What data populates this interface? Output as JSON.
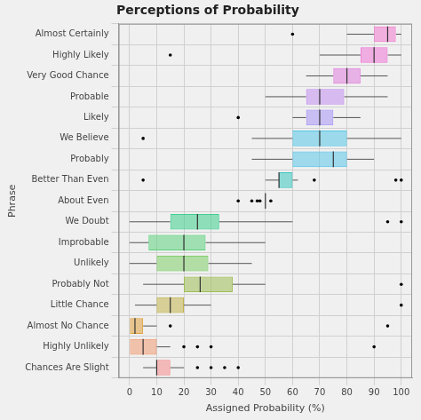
{
  "chart_data": {
    "type": "boxplot",
    "orientation": "horizontal",
    "title": "Perceptions of Probability",
    "x_label": "Assigned Probability (%)",
    "y_label": "Phrase",
    "xlim": [
      -4,
      104
    ],
    "xticks": [
      0,
      10,
      20,
      30,
      40,
      50,
      60,
      70,
      80,
      90,
      100
    ],
    "grid": true,
    "legend": false,
    "categories": [
      "Almost Certainly",
      "Highly Likely",
      "Very Good Chance",
      "Probable",
      "Likely",
      "We Believe",
      "Probably",
      "Better Than Even",
      "About Even",
      "We Doubt",
      "Improbable",
      "Unlikely",
      "Probably Not",
      "Little Chance",
      "Almost No Chance",
      "Highly Unlikely",
      "Chances Are Slight"
    ],
    "values": [
      {
        "min": 80,
        "q1": 90,
        "median": 95,
        "q3": 98,
        "max": 100,
        "outliers": [
          60
        ]
      },
      {
        "min": 70,
        "q1": 85,
        "median": 90,
        "q3": 95,
        "max": 100,
        "outliers": [
          15
        ]
      },
      {
        "min": 65,
        "q1": 75,
        "median": 80,
        "q3": 85,
        "max": 95,
        "outliers": []
      },
      {
        "min": 50,
        "q1": 65,
        "median": 70,
        "q3": 79,
        "max": 95,
        "outliers": []
      },
      {
        "min": 60,
        "q1": 65,
        "median": 70,
        "q3": 75,
        "max": 85,
        "outliers": [
          40
        ]
      },
      {
        "min": 45,
        "q1": 60,
        "median": 70,
        "q3": 80,
        "max": 100,
        "outliers": [
          5
        ]
      },
      {
        "min": 45,
        "q1": 60,
        "median": 75,
        "q3": 80,
        "max": 90,
        "outliers": []
      },
      {
        "min": 50,
        "q1": 55,
        "median": 55,
        "q3": 60,
        "max": 62,
        "outliers": [
          5,
          68,
          98,
          100
        ]
      },
      {
        "min": 50,
        "q1": 50,
        "median": 50,
        "q3": 50,
        "max": 50,
        "outliers": [
          40,
          45,
          47,
          48,
          52
        ]
      },
      {
        "min": 0,
        "q1": 15,
        "median": 25,
        "q3": 33,
        "max": 60,
        "outliers": [
          95,
          100
        ]
      },
      {
        "min": 0,
        "q1": 7,
        "median": 20,
        "q3": 28,
        "max": 50,
        "outliers": []
      },
      {
        "min": 0,
        "q1": 10,
        "median": 20,
        "q3": 29,
        "max": 45,
        "outliers": []
      },
      {
        "min": 5,
        "q1": 20,
        "median": 26,
        "q3": 38,
        "max": 50,
        "outliers": [
          100
        ]
      },
      {
        "min": 2,
        "q1": 10,
        "median": 15,
        "q3": 20,
        "max": 30,
        "outliers": [
          100
        ]
      },
      {
        "min": 0,
        "q1": 0,
        "median": 2,
        "q3": 5,
        "max": 10,
        "outliers": [
          15,
          95
        ]
      },
      {
        "min": 0,
        "q1": 0,
        "median": 5,
        "q3": 10,
        "max": 15,
        "outliers": [
          20,
          25,
          30,
          90
        ]
      },
      {
        "min": 5,
        "q1": 10,
        "median": 10,
        "q3": 15,
        "max": 20,
        "outliers": [
          25,
          30,
          35,
          40
        ]
      }
    ],
    "colors": [
      "#f27ad0",
      "#ee77d6",
      "#e07fdc",
      "#c38ff0",
      "#a995f5",
      "#58c8e8",
      "#5bc6ea",
      "#3cc7c0",
      "#2ec7b7",
      "#3fcf8e",
      "#5ed27d",
      "#7fcf6a",
      "#9fbe55",
      "#c2b44c",
      "#e0a03c",
      "#f09a72",
      "#f58a8a"
    ]
  }
}
